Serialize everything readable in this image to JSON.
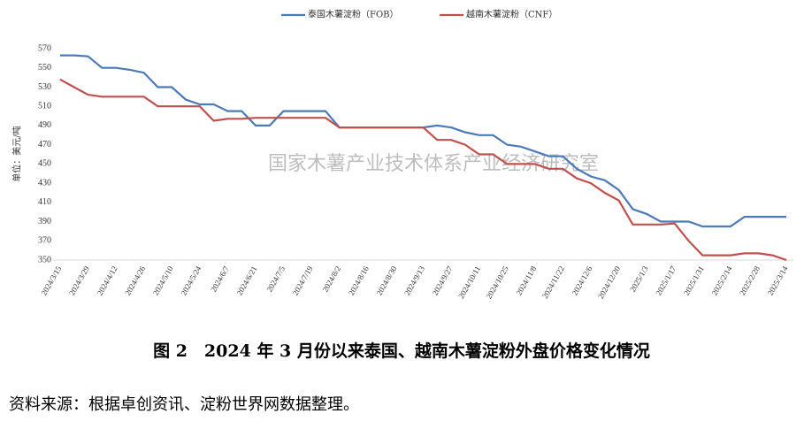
{
  "chart_data": {
    "type": "line",
    "title": "图 2　2024 年 3 月份以来泰国、越南木薯淀粉外盘价格变化情况",
    "source": "资料来源：根据卓创资讯、淀粉世界网数据整理。",
    "watermark": "国家木薯产业技术体系产业经济研究室",
    "y_label": "单位：美元/吨",
    "categories": [
      "2024/3/15",
      null,
      "2024/3/29",
      null,
      "2024/4/12",
      null,
      "2024/4/26",
      null,
      "2024/5/10",
      null,
      "2024/5/24",
      null,
      "2024/6/7",
      null,
      "2024/6/21",
      null,
      "2024/7/5",
      null,
      "2024/7/19",
      null,
      "2024/8/2",
      null,
      "2024/8/16",
      null,
      "2024/8/30",
      null,
      "2024/9/13",
      null,
      "2024/9/27",
      null,
      "2024/10/11",
      null,
      "2024/10/25",
      null,
      "2024/11/8",
      null,
      "2024/11/22",
      null,
      "2024/12/6",
      null,
      "2024/12/20",
      null,
      "2025/1/3",
      null,
      "2025/1/17",
      null,
      "2025/1/31",
      null,
      "2025/2/14",
      null,
      "2025/2/28",
      null,
      "2025/3/14"
    ],
    "series": [
      {
        "name": "泰国木薯淀粉（FOB）",
        "color": "#4a7ab8",
        "values": [
          563,
          563,
          562,
          550,
          550,
          548,
          545,
          530,
          530,
          517,
          512,
          512,
          505,
          505,
          490,
          490,
          505,
          505,
          505,
          505,
          488,
          488,
          488,
          488,
          488,
          488,
          488,
          490,
          488,
          483,
          480,
          480,
          470,
          468,
          463,
          458,
          458,
          445,
          437,
          433,
          423,
          403,
          398,
          390,
          390,
          390,
          385,
          385,
          385,
          395,
          395,
          395,
          395
        ]
      },
      {
        "name": "越南木薯淀粉（CNF）",
        "color": "#c0504d",
        "values": [
          538,
          530,
          522,
          520,
          520,
          520,
          520,
          510,
          510,
          510,
          510,
          495,
          497,
          497,
          498,
          498,
          498,
          498,
          498,
          498,
          488,
          488,
          488,
          488,
          488,
          488,
          488,
          475,
          475,
          470,
          460,
          460,
          450,
          450,
          450,
          445,
          445,
          435,
          430,
          420,
          412,
          387,
          387,
          387,
          388,
          370,
          355,
          355,
          355,
          357,
          357,
          355,
          350
        ]
      }
    ],
    "ylim": [
      350,
      570
    ],
    "yticks": [
      350,
      370,
      390,
      410,
      430,
      450,
      470,
      490,
      510,
      530,
      550,
      570
    ]
  }
}
